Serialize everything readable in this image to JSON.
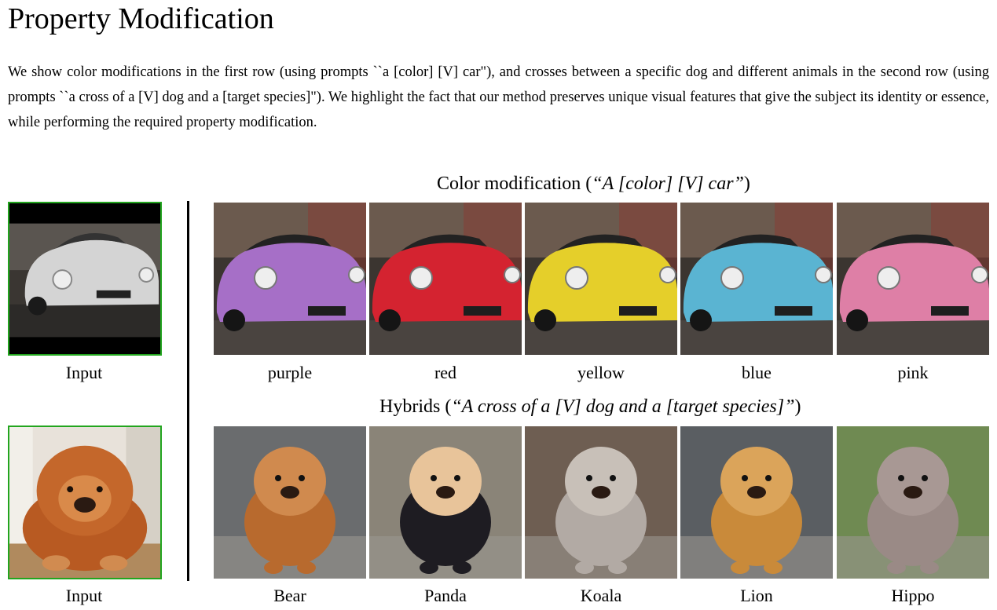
{
  "page": {
    "title": "Property Modification",
    "intro": "We show color modifications in the first row (using prompts ``a [color] [V] car\"), and crosses between a specific dog and different animals in the second row (using prompts ``a cross of a [V] dog and a [target species]\"). We highlight the fact that our method preserves unique visual features that give the subject its identity or essence, while performing the required property modification."
  },
  "figure": {
    "color_row": {
      "title_plain": "Color modification (",
      "title_italic": "“A [color] [V] car”",
      "title_close": ")",
      "input_label": "Input",
      "labels": [
        "purple",
        "red",
        "yellow",
        "blue",
        "pink"
      ]
    },
    "hybrid_row": {
      "title_plain": "Hybrids (",
      "title_italic": "“A cross of a [V] dog and a [target species]”",
      "title_close": ")",
      "input_label": "Input",
      "labels": [
        "Bear",
        "Panda",
        "Koala",
        "Lion",
        "Hippo"
      ]
    },
    "colors": {
      "input_border": "#22a51e",
      "car_input": "#cfcfcf",
      "car_purple": "#a66fc7",
      "car_red": "#d42330",
      "car_yellow": "#e5cf2a",
      "car_blue": "#5ab4d2",
      "car_pink": "#de7fa6",
      "dog_input": "#c4672b"
    }
  }
}
